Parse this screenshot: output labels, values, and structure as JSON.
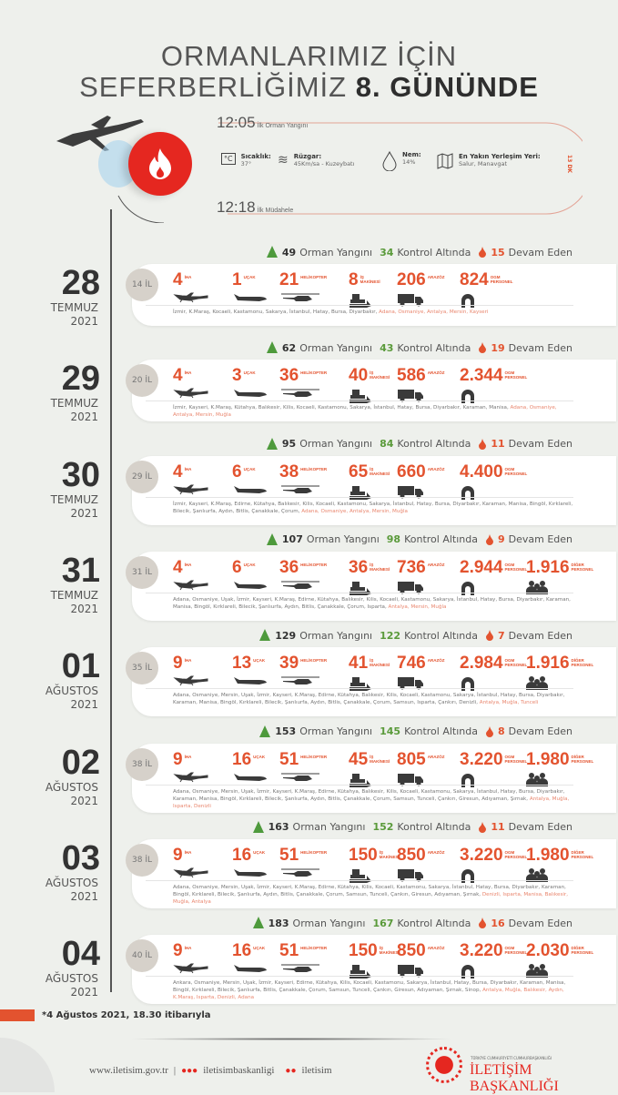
{
  "header": {
    "title_line1": "ORMANLARIMIZ İÇİN",
    "title_line2_light": "SEFERBERLİĞİMİZ",
    "title_line2_bold": "8. GÜNÜNDE"
  },
  "first_event": {
    "fire_time": "12:05",
    "fire_label": "İlk Orman Yangını",
    "response_time": "12:18",
    "response_label": "İlk Müdahele",
    "duration": "13 DK",
    "temperature_label": "Sıcaklık:",
    "temperature_value": "37°",
    "wind_label": "Rüzgar:",
    "wind_value": "45Km/sa - Kuzeybatı",
    "humidity_label": "Nem:",
    "humidity_value": "14%",
    "settlement_label": "En Yakın Yerleşim Yeri:",
    "settlement_value": "Salur, Manavgat"
  },
  "labels": {
    "orman": "Orman Yangını",
    "kontrol": "Kontrol Altında",
    "devam": "Devam Eden",
    "iha": "İHA",
    "ucak": "UÇAK",
    "helikopter": "HELİKOPTER",
    "is": "İŞ MAKİNESİ",
    "arazoz": "ARAZÖZ",
    "ogm": "OGM PERSONEL",
    "diger": "DİĞER PERSONEL"
  },
  "colors": {
    "accent": "#e3532f",
    "green": "#5a9a3a",
    "background": "#eef0ec"
  },
  "days": [
    {
      "day": "28",
      "month": "TEMMUZ",
      "year": "2021",
      "il": "14 İL",
      "orman": "49",
      "kontrol": "34",
      "devam": "15",
      "iha": "4",
      "ucak": "1",
      "helikopter": "21",
      "is": "8",
      "arazoz": "206",
      "ogm": "824",
      "provinces": "İzmir, K.Maraş, Kocaeli, Kastamonu, Sakarya, İstanbul, Hatay, Bursa, Diyarbakır,",
      "provinces_active": " Adana, Osmaniye, Antalya, Mersin, Kayseri"
    },
    {
      "day": "29",
      "month": "TEMMUZ",
      "year": "2021",
      "il": "20 İL",
      "orman": "62",
      "kontrol": "43",
      "devam": "19",
      "iha": "4",
      "ucak": "3",
      "helikopter": "36",
      "is": "40",
      "arazoz": "586",
      "ogm": "2.344",
      "provinces": "İzmir, Kayseri, K.Maraş, Kütahya, Balıkesir, Kilis, Kocaeli, Kastamonu, Sakarya, İstanbul, Hatay, Bursa, Diyarbakır, Karaman, Manisa,",
      "provinces_active": " Adana, Osmaniye, Antalya, Mersin, Muğla"
    },
    {
      "day": "30",
      "month": "TEMMUZ",
      "year": "2021",
      "il": "29 İL",
      "orman": "95",
      "kontrol": "84",
      "devam": "11",
      "iha": "4",
      "ucak": "6",
      "helikopter": "38",
      "is": "65",
      "arazoz": "660",
      "ogm": "4.400",
      "provinces": "İzmir, Kayseri, K.Maraş, Edirne, Kütahya, Balıkesir, Kilis, Kocaeli, Kastamonu, Sakarya, İstanbul, Hatay, Bursa, Diyarbakır, Karaman, Manisa, Bingöl, Kırklareli, Bilecik, Şanlıurfa, Aydın, Bitlis, Çanakkale, Çorum,",
      "provinces_active": " Adana, Osmaniye, Antalya, Mersin, Muğla"
    },
    {
      "day": "31",
      "month": "TEMMUZ",
      "year": "2021",
      "il": "31 İL",
      "orman": "107",
      "kontrol": "98",
      "devam": "9",
      "iha": "4",
      "ucak": "6",
      "helikopter": "36",
      "is": "36",
      "arazoz": "736",
      "ogm": "2.944",
      "diger": "1.916",
      "provinces": "Adana, Osmaniye, Uşak, İzmir, Kayseri, K.Maraş, Edirne, Kütahya, Balıkesir, Kilis, Kocaeli, Kastamonu, Sakarya, İstanbul, Hatay, Bursa, Diyarbakır, Karaman, Manisa, Bingöl, Kırklareli, Bilecik, Şanlıurfa, Aydın, Bitlis, Çanakkale, Çorum, Isparta,",
      "provinces_active": " Antalya, Mersin, Muğla"
    },
    {
      "day": "01",
      "month": "AĞUSTOS",
      "year": "2021",
      "il": "35 İL",
      "orman": "129",
      "kontrol": "122",
      "devam": "7",
      "iha": "9",
      "ucak": "13",
      "helikopter": "39",
      "is": "41",
      "arazoz": "746",
      "ogm": "2.984",
      "diger": "1.916",
      "provinces": "Adana, Osmaniye, Mersin, Uşak, İzmir, Kayseri, K.Maraş, Edirne, Kütahya, Balıkesir, Kilis, Kocaeli, Kastamonu, Sakarya, İstanbul, Hatay, Bursa, Diyarbakır, Karaman, Manisa, Bingöl, Kırklareli, Bilecik, Şanlıurfa, Aydın, Bitlis, Çanakkale, Çorum, Samsun, Isparta, Çankırı, Denizli,",
      "provinces_active": " Antalya, Muğla, Tunceli"
    },
    {
      "day": "02",
      "month": "AĞUSTOS",
      "year": "2021",
      "il": "38 İL",
      "orman": "153",
      "kontrol": "145",
      "devam": "8",
      "iha": "9",
      "ucak": "16",
      "helikopter": "51",
      "is": "45",
      "arazoz": "805",
      "ogm": "3.220",
      "diger": "1.980",
      "provinces": "Adana, Osmaniye, Mersin, Uşak, İzmir, Kayseri, K.Maraş, Edirne, Kütahya, Balıkesir, Kilis, Kocaeli, Kastamonu, Sakarya, İstanbul, Hatay, Bursa, Diyarbakır, Karaman, Manisa, Bingöl, Kırklareli, Bilecik, Şanlıurfa, Aydın, Bitlis, Çanakkale, Çorum, Samsun, Tunceli, Çankırı, Giresun, Adıyaman, Şırnak,",
      "provinces_active": " Antalya, Muğla, Isparta, Denizli"
    },
    {
      "day": "03",
      "month": "AĞUSTOS",
      "year": "2021",
      "il": "38 İL",
      "orman": "163",
      "kontrol": "152",
      "devam": "11",
      "iha": "9",
      "ucak": "16",
      "helikopter": "51",
      "is": "150",
      "arazoz": "850",
      "ogm": "3.220",
      "diger": "1.980",
      "provinces": "Adana, Osmaniye, Mersin, Uşak, İzmir, Kayseri, K.Maraş, Edirne, Kütahya, Kilis, Kocaeli, Kastamonu, Sakarya, İstanbul, Hatay, Bursa, Diyarbakır, Karaman, Bingöl, Kırklareli, Bilecik, Şanlıurfa, Aydın, Bitlis, Çanakkale, Çorum, Samsun, Tunceli, Çankırı, Giresun, Adıyaman, Şırnak,",
      "provinces_active": " Denizli, Isparta, Manisa, Balıkesir, Muğla, Antalya"
    },
    {
      "day": "04",
      "month": "AĞUSTOS",
      "year": "2021",
      "il": "40 İL",
      "orman": "183",
      "kontrol": "167",
      "devam": "16",
      "iha": "9",
      "ucak": "16",
      "helikopter": "51",
      "is": "150",
      "arazoz": "850",
      "ogm": "3.220",
      "diger": "2.030",
      "provinces": "Ankara, Osmaniye, Mersin, Uşak, İzmir, Kayseri, Edirne, Kütahya, Kilis, Kocaeli, Kastamonu, Sakarya, İstanbul, Hatay, Bursa, Diyarbakır, Karaman, Manisa, Bingöl, Kırklareli, Bilecik, Şanlıurfa, Bitlis, Çanakkale, Çorum, Samsun, Tunceli, Çankırı, Giresun, Adıyaman, Şırnak, Sinop,",
      "provinces_active": " Antalya, Muğla, Balıkesir, Aydın, K.Maraş, Isparta, Denizli, Adana"
    }
  ],
  "footer": {
    "note": "*4 Ağustos 2021, 18.30 itibarıyla",
    "website": "www.iletisim.gov.tr",
    "separator": "|",
    "social1": "iletisimbaskanligi",
    "social2": "iletisim",
    "org_small": "TÜRKİYE CUMHURİYETİ CUMHURBAŞKANLIĞI",
    "org_name": "İLETİŞİM BAŞKANLIĞI"
  }
}
